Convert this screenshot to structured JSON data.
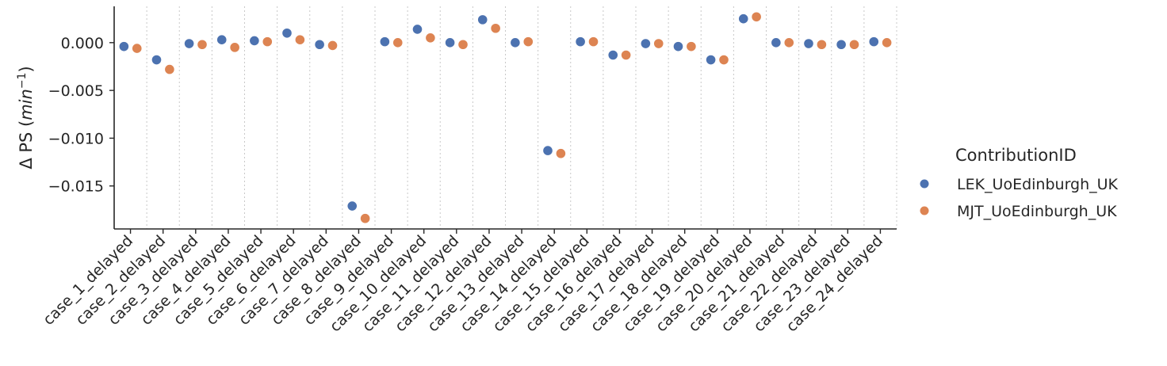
{
  "chart_data": {
    "type": "scatter",
    "ylabel": "Δ PS (min⁻¹)",
    "ylabel_parts": {
      "prefix": "Δ PS (",
      "unit_base": "min",
      "unit_sup": "−1",
      "suffix": ")"
    },
    "ylim": [
      -0.0195,
      0.0038
    ],
    "yticks": [
      {
        "value": 0.0,
        "label": "0.000"
      },
      {
        "value": -0.005,
        "label": "−0.005"
      },
      {
        "value": -0.01,
        "label": "−0.010"
      },
      {
        "value": -0.015,
        "label": "−0.015"
      }
    ],
    "categories": [
      "case_1_delayed",
      "case_2_delayed",
      "case_3_delayed",
      "case_4_delayed",
      "case_5_delayed",
      "case_6_delayed",
      "case_7_delayed",
      "case_8_delayed",
      "case_9_delayed",
      "case_10_delayed",
      "case_11_delayed",
      "case_12_delayed",
      "case_13_delayed",
      "case_14_delayed",
      "case_15_delayed",
      "case_16_delayed",
      "case_17_delayed",
      "case_18_delayed",
      "case_19_delayed",
      "case_20_delayed",
      "case_21_delayed",
      "case_22_delayed",
      "case_23_delayed",
      "case_24_delayed"
    ],
    "grid": {
      "x_dotted_separators": true,
      "y": false
    },
    "legend": {
      "title": "ContributionID",
      "placement": "right"
    },
    "series": [
      {
        "name": "LEK_UoEdinburgh_UK",
        "color": "#4c72b0",
        "values": [
          -0.0004,
          -0.0018,
          -0.0001,
          0.0003,
          0.0002,
          0.001,
          -0.0002,
          -0.0171,
          0.0001,
          0.0014,
          0.0,
          0.0024,
          0.0,
          -0.0113,
          0.0001,
          -0.0013,
          -0.0001,
          -0.0004,
          -0.0018,
          0.0025,
          0.0,
          -0.0001,
          -0.0002,
          0.0001
        ]
      },
      {
        "name": "MJT_UoEdinburgh_UK",
        "color": "#dd8452",
        "values": [
          -0.0006,
          -0.0028,
          -0.0002,
          -0.0005,
          0.0001,
          0.0003,
          -0.0003,
          -0.0184,
          0.0,
          0.0005,
          -0.0002,
          0.0015,
          0.0001,
          -0.0116,
          0.0001,
          -0.0013,
          -0.0001,
          -0.0004,
          -0.0018,
          0.0027,
          0.0,
          -0.0002,
          -0.0002,
          0.0
        ]
      }
    ]
  }
}
